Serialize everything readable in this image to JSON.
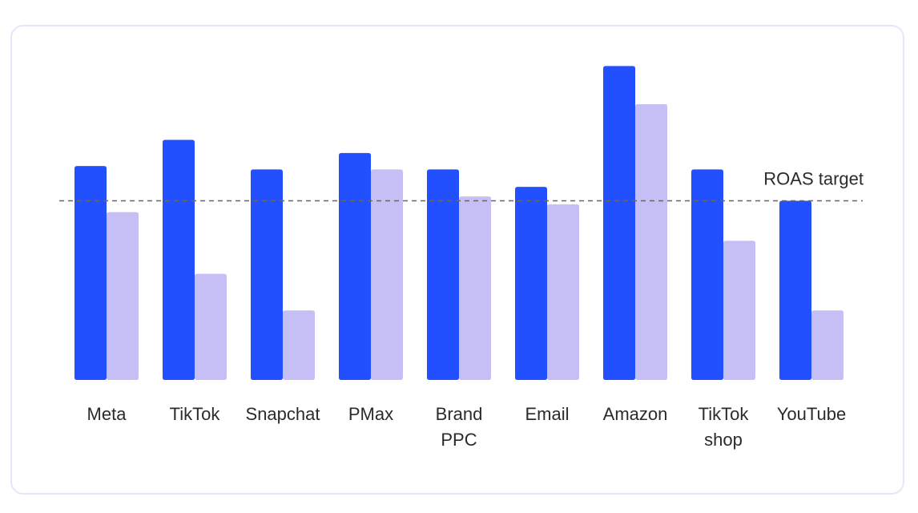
{
  "chart_data": {
    "type": "bar",
    "categories": [
      [
        "Meta"
      ],
      [
        "TikTok"
      ],
      [
        "Snapchat"
      ],
      [
        "PMax"
      ],
      [
        "Brand",
        "PPC"
      ],
      [
        "Email"
      ],
      [
        "Amazon"
      ],
      [
        "TikTok",
        "shop"
      ],
      [
        "YouTube"
      ]
    ],
    "series": [
      {
        "color": "#2350ff",
        "values": [
          2.46,
          2.76,
          2.42,
          2.61,
          2.42,
          2.22,
          3.61,
          2.42,
          2.06
        ]
      },
      {
        "color": "#c6bff5",
        "values": [
          1.93,
          1.22,
          0.8,
          2.42,
          2.11,
          2.02,
          3.17,
          1.6,
          0.8
        ]
      }
    ],
    "reference_line": {
      "label": "ROAS target",
      "value": 2.06,
      "color": "#666666",
      "style": "dashed"
    },
    "ylim": [
      0,
      4
    ],
    "xlabel": "",
    "ylabel": "",
    "grid": false,
    "legend": "none"
  }
}
